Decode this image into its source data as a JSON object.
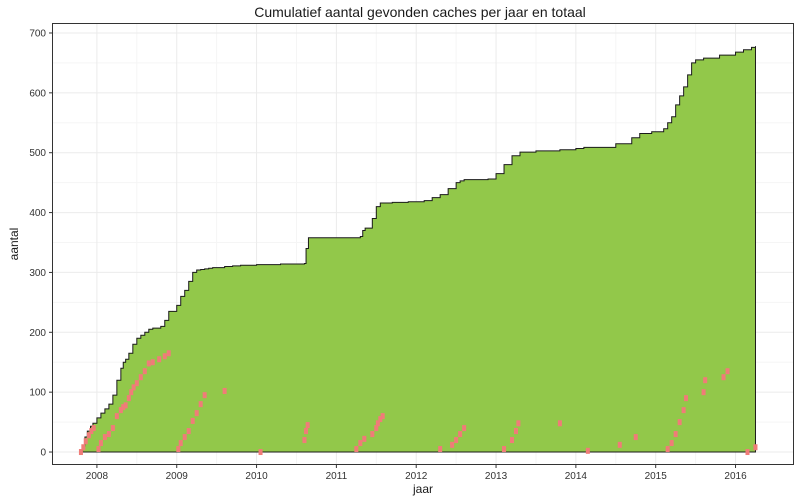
{
  "chart_data": {
    "type": "area",
    "title": "Cumulatief aantal gevonden caches per jaar en totaal",
    "xlabel": "jaar",
    "ylabel": "aantal",
    "xlim": [
      2007.45,
      2016.72
    ],
    "ylim": [
      -20,
      715
    ],
    "x_ticks": [
      2008,
      2009,
      2010,
      2011,
      2012,
      2013,
      2014,
      2015,
      2016
    ],
    "y_ticks": [
      0,
      100,
      200,
      300,
      400,
      500,
      600,
      700
    ],
    "grid": true,
    "legend": "none",
    "colors": {
      "area_fill": "#92c84a",
      "area_line": "#1a1a1a",
      "points": "#f07c78"
    },
    "series": [
      {
        "kind": "area-total",
        "x": [
          2007.8,
          2007.82,
          2007.85,
          2007.88,
          2007.92,
          2007.95,
          2008.0,
          2008.05,
          2008.1,
          2008.15,
          2008.2,
          2008.25,
          2008.3,
          2008.33,
          2008.36,
          2008.4,
          2008.45,
          2008.5,
          2008.55,
          2008.6,
          2008.65,
          2008.7,
          2008.8,
          2008.85,
          2008.9,
          2009.0,
          2009.05,
          2009.1,
          2009.15,
          2009.2,
          2009.25,
          2009.3,
          2009.35,
          2009.4,
          2009.45,
          2009.6,
          2009.7,
          2009.8,
          2010.0,
          2010.3,
          2010.6,
          2010.62,
          2010.65,
          2010.8,
          2011.0,
          2011.2,
          2011.3,
          2011.33,
          2011.36,
          2011.45,
          2011.5,
          2011.55,
          2011.6,
          2011.7,
          2011.9,
          2012.1,
          2012.2,
          2012.3,
          2012.4,
          2012.5,
          2012.55,
          2012.6,
          2012.9,
          2013.0,
          2013.1,
          2013.2,
          2013.3,
          2013.5,
          2013.8,
          2014.0,
          2014.1,
          2014.5,
          2014.7,
          2014.8,
          2014.95,
          2015.1,
          2015.15,
          2015.2,
          2015.25,
          2015.3,
          2015.35,
          2015.4,
          2015.45,
          2015.5,
          2015.6,
          2015.8,
          2016.0,
          2016.1,
          2016.2,
          2016.25
        ],
        "values": [
          0,
          10,
          25,
          35,
          43,
          48,
          57,
          65,
          72,
          80,
          95,
          120,
          140,
          150,
          155,
          165,
          180,
          190,
          195,
          200,
          205,
          207,
          210,
          220,
          235,
          245,
          260,
          270,
          285,
          300,
          304,
          305,
          306,
          307,
          308,
          310,
          311,
          312,
          313,
          314,
          315,
          340,
          358,
          358,
          358,
          358,
          360,
          370,
          374,
          390,
          410,
          416,
          416,
          417,
          418,
          420,
          425,
          430,
          440,
          450,
          453,
          455,
          456,
          465,
          480,
          495,
          501,
          503,
          505,
          507,
          509,
          515,
          525,
          532,
          535,
          540,
          550,
          560,
          580,
          595,
          610,
          630,
          650,
          655,
          658,
          663,
          668,
          672,
          676,
          678
        ]
      },
      {
        "kind": "points-per-year",
        "x": [
          2007.8,
          2007.83,
          2007.86,
          2007.9,
          2007.93,
          2007.96,
          2008.02,
          2008.05,
          2008.1,
          2008.15,
          2008.2,
          2008.25,
          2008.3,
          2008.33,
          2008.36,
          2008.4,
          2008.43,
          2008.46,
          2008.5,
          2008.55,
          2008.6,
          2008.65,
          2008.7,
          2008.78,
          2008.85,
          2008.9,
          2009.02,
          2009.05,
          2009.1,
          2009.15,
          2009.2,
          2009.25,
          2009.3,
          2009.35,
          2009.6,
          2010.05,
          2010.6,
          2010.62,
          2010.64,
          2011.25,
          2011.3,
          2011.35,
          2011.45,
          2011.5,
          2011.52,
          2011.55,
          2011.58,
          2012.3,
          2012.45,
          2012.5,
          2012.55,
          2012.6,
          2013.1,
          2013.2,
          2013.25,
          2013.28,
          2013.8,
          2014.15,
          2014.55,
          2014.75,
          2015.15,
          2015.2,
          2015.25,
          2015.3,
          2015.35,
          2015.38,
          2015.6,
          2015.62,
          2015.85,
          2015.9,
          2016.15,
          2016.25
        ],
        "values": [
          0,
          8,
          18,
          28,
          35,
          40,
          5,
          15,
          25,
          30,
          40,
          60,
          70,
          75,
          78,
          90,
          100,
          108,
          115,
          125,
          135,
          148,
          150,
          155,
          160,
          165,
          5,
          15,
          25,
          35,
          52,
          65,
          80,
          95,
          102,
          0,
          20,
          35,
          45,
          5,
          15,
          22,
          30,
          40,
          48,
          55,
          60,
          5,
          12,
          20,
          30,
          40,
          5,
          20,
          35,
          48,
          48,
          2,
          12,
          25,
          5,
          15,
          30,
          50,
          70,
          90,
          100,
          120,
          125,
          135,
          0,
          8
        ]
      }
    ]
  }
}
